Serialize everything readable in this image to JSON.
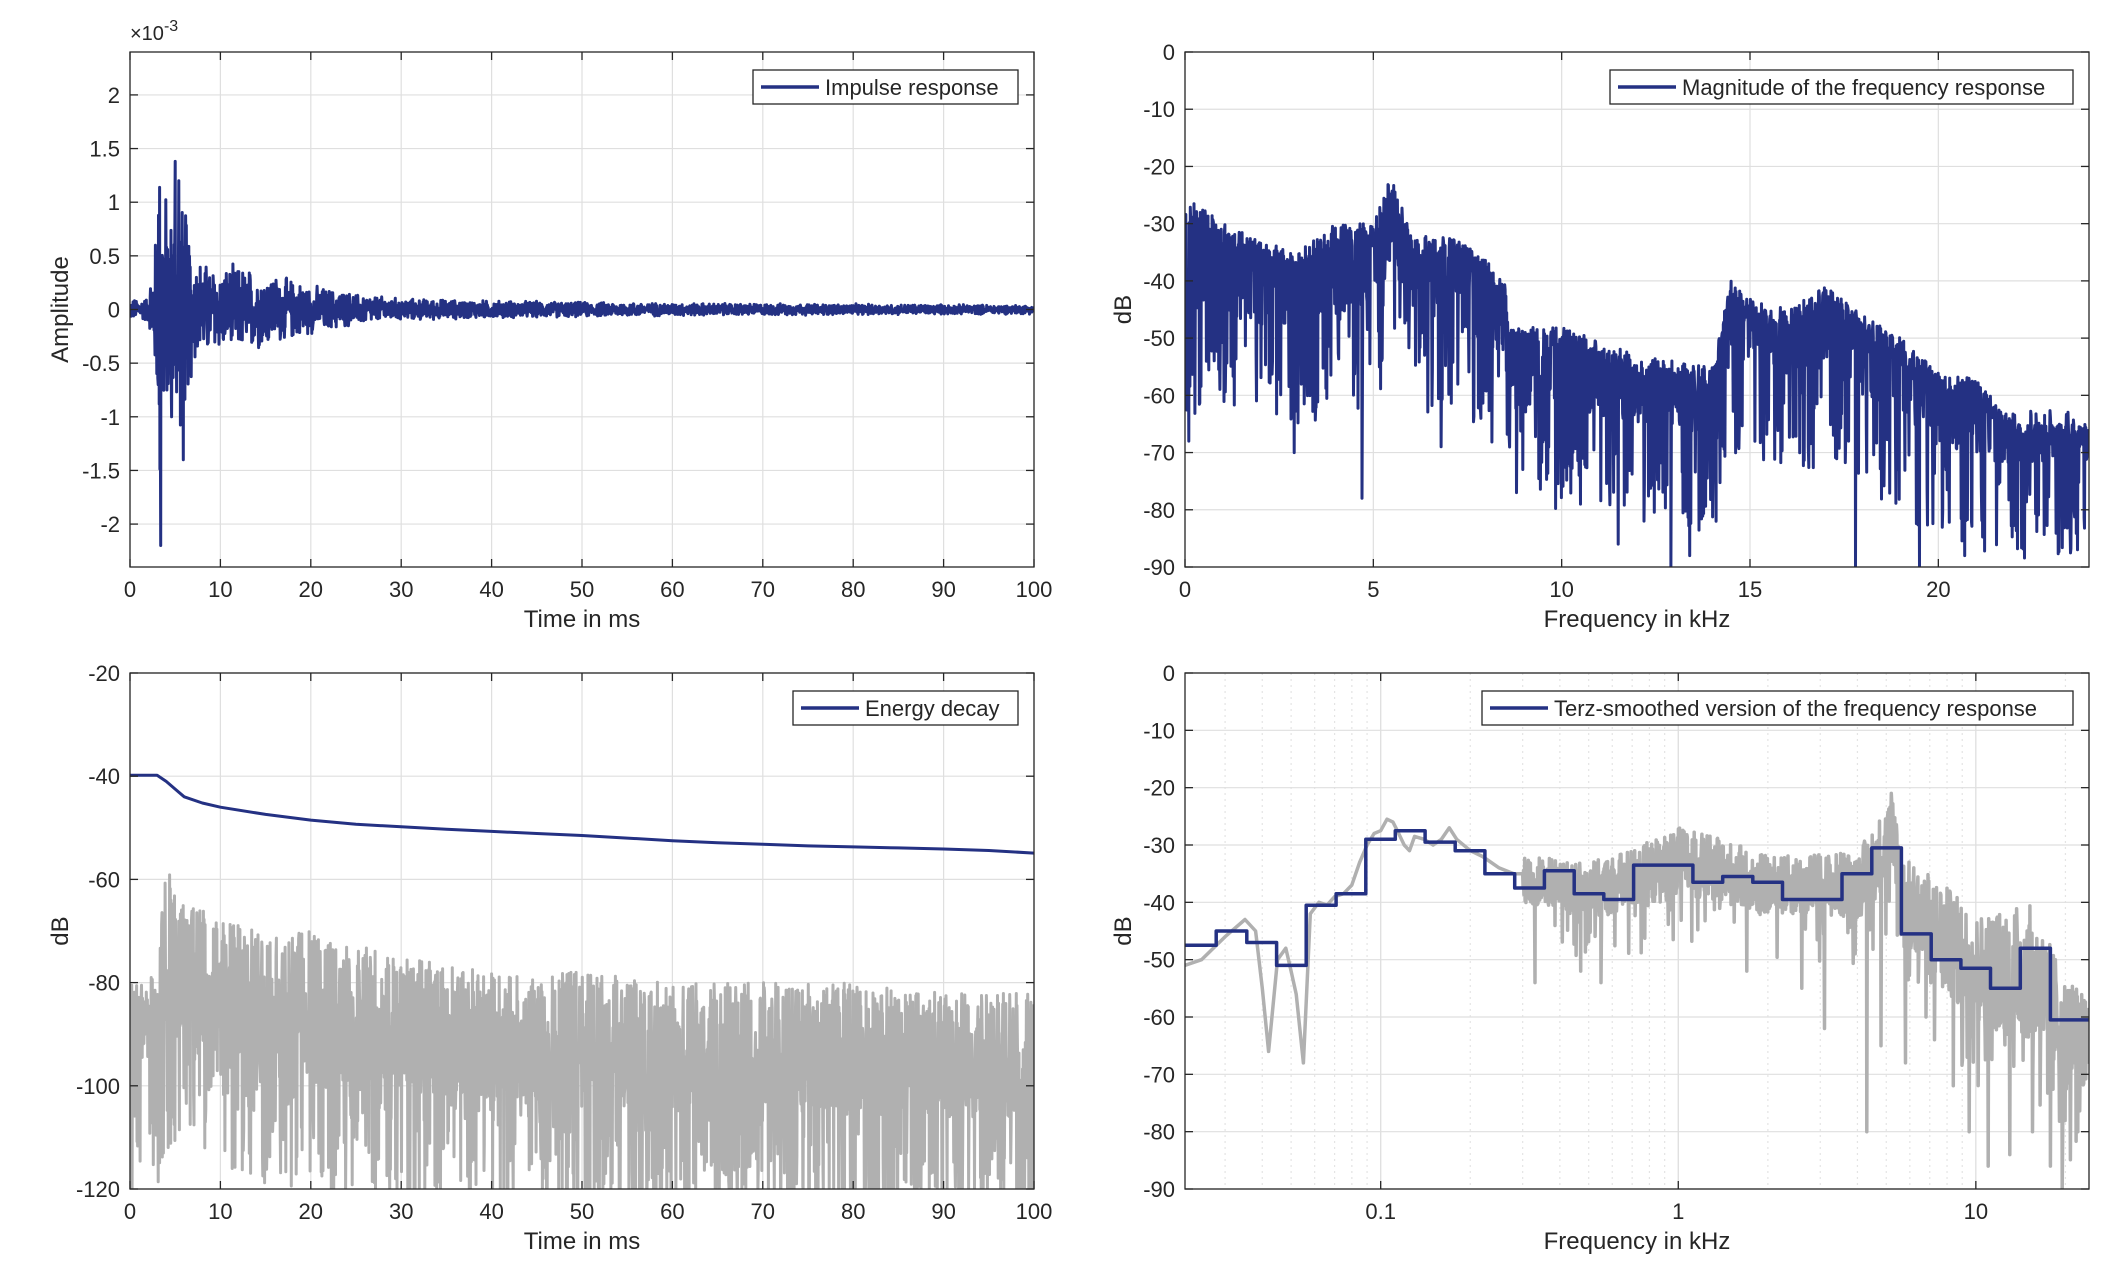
{
  "colors": {
    "main": "#243183",
    "gray": "#b0b0b0",
    "axis": "#262626",
    "grid": "#dfdfdf"
  },
  "chart_data": [
    {
      "type": "line",
      "xlabel": "Time in ms",
      "ylabel": "Amplitude",
      "xlim": [
        0,
        100
      ],
      "ylim": [
        -2.4,
        2.4
      ],
      "exponent_label": "×10",
      "exponent_power": "-3",
      "xticks": [
        0,
        10,
        20,
        30,
        40,
        50,
        60,
        70,
        80,
        90,
        100
      ],
      "xtick_labels": [
        "0",
        "10",
        "20",
        "30",
        "40",
        "50",
        "60",
        "70",
        "80",
        "90",
        "100"
      ],
      "yticks": [
        2,
        1.5,
        1,
        0.5,
        0,
        -0.5,
        -1,
        -1.5,
        -2
      ],
      "ytick_labels": [
        "2",
        "1.5",
        "1",
        "0.5",
        "0",
        "-0.5",
        "-1",
        "-1.5",
        "-2"
      ],
      "grid": true,
      "legend_position": "top-right",
      "series": [
        {
          "name": "Impulse response",
          "color": "#243183",
          "envelope": {
            "x": [
              0,
              2,
              3,
              3.2,
              3.5,
              4,
              4.5,
              5,
              5.5,
              6,
              7,
              8,
              10,
              12,
              15,
              18,
              20,
              25,
              30,
              40,
              50,
              60,
              70,
              80,
              90,
              100
            ],
            "y": [
              0.1,
              0.12,
              0.9,
              2.2,
              1.5,
              1.2,
              1.0,
              1.38,
              1.2,
              1.1,
              0.6,
              0.5,
              0.42,
              0.45,
              0.38,
              0.3,
              0.25,
              0.16,
              0.11,
              0.09,
              0.075,
              0.065,
              0.06,
              0.055,
              0.05,
              0.045
            ]
          },
          "peaks": [
            {
              "x": 3.4,
              "y": -2.2
            },
            {
              "x": 5.0,
              "y": 1.38
            },
            {
              "x": 5.4,
              "y": 1.2
            },
            {
              "x": 5.9,
              "y": -1.4
            },
            {
              "x": 4.6,
              "y": -1.0
            }
          ]
        }
      ]
    },
    {
      "type": "line",
      "xlabel": "Frequency in kHz",
      "ylabel": "dB",
      "xlim": [
        0,
        24
      ],
      "ylim": [
        -90,
        0
      ],
      "xticks": [
        0,
        5,
        10,
        15,
        20
      ],
      "xtick_labels": [
        "0",
        "5",
        "10",
        "15",
        "20"
      ],
      "yticks": [
        0,
        -10,
        -20,
        -30,
        -40,
        -50,
        -60,
        -70,
        -80,
        -90
      ],
      "ytick_labels": [
        "0",
        "-10",
        "-20",
        "-30",
        "-40",
        "-50",
        "-60",
        "-70",
        "-80",
        "-90"
      ],
      "grid": true,
      "legend_position": "top-right",
      "series": [
        {
          "name": "Magnitude of the frequency response",
          "color": "#243183",
          "upper_envelope": {
            "x": [
              0,
              0.2,
              1,
              2,
              3,
              4,
              5,
              5.5,
              6,
              7,
              8,
              8.5,
              8.6,
              10,
              12,
              14,
              14.5,
              15,
              16,
              17,
              18,
              19,
              20,
              21,
              22,
              23,
              24
            ],
            "y": [
              -28,
              -26,
              -30,
              -33,
              -35,
              -30,
              -30,
              -21,
              -32,
              -32,
              -36,
              -40,
              -48,
              -48,
              -53,
              -55,
              -40,
              -43,
              -45,
              -41,
              -46,
              -50,
              -56,
              -57,
              -65,
              -65,
              -65
            ]
          },
          "base_envelope": {
            "x": [
              0,
              1,
              2,
              3,
              4,
              5,
              5.5,
              6,
              7,
              8,
              8.5,
              8.6,
              10,
              12,
              14,
              14.5,
              15,
              16,
              17,
              18,
              19,
              20,
              21,
              22,
              23,
              24
            ],
            "y": [
              -42,
              -42,
              -43,
              -43,
              -42,
              -40,
              -32,
              -40,
              -43,
              -46,
              -48,
              -58,
              -58,
              -60,
              -62,
              -48,
              -50,
              -52,
              -50,
              -55,
              -58,
              -64,
              -65,
              -68,
              -67,
              -67
            ]
          },
          "dips": [
            {
              "x": 0.1,
              "y": -68
            },
            {
              "x": 2.9,
              "y": -70
            },
            {
              "x": 4.7,
              "y": -78
            },
            {
              "x": 6.8,
              "y": -69
            },
            {
              "x": 8.8,
              "y": -77
            },
            {
              "x": 10.5,
              "y": -79
            },
            {
              "x": 11.5,
              "y": -86
            },
            {
              "x": 12.9,
              "y": -90
            },
            {
              "x": 13.4,
              "y": -88
            },
            {
              "x": 14.1,
              "y": -82
            },
            {
              "x": 17.8,
              "y": -90
            },
            {
              "x": 19.5,
              "y": -90
            },
            {
              "x": 20.7,
              "y": -88
            }
          ]
        }
      ]
    },
    {
      "type": "line",
      "xlabel": "Time in ms",
      "ylabel": "dB",
      "xlim": [
        0,
        100
      ],
      "ylim": [
        -120,
        -20
      ],
      "xticks": [
        0,
        10,
        20,
        30,
        40,
        50,
        60,
        70,
        80,
        90,
        100
      ],
      "xtick_labels": [
        "0",
        "10",
        "20",
        "30",
        "40",
        "50",
        "60",
        "70",
        "80",
        "90",
        "100"
      ],
      "yticks": [
        -20,
        -40,
        -60,
        -80,
        -100,
        -120
      ],
      "ytick_labels": [
        "-20",
        "-40",
        "-60",
        "-80",
        "-100",
        "-120"
      ],
      "grid": true,
      "legend_position": "top-right",
      "series": [
        {
          "name": "Energy decay",
          "color": "#243183",
          "x": [
            0,
            3,
            4,
            5,
            6,
            8,
            10,
            15,
            20,
            25,
            30,
            35,
            40,
            45,
            50,
            55,
            60,
            65,
            70,
            75,
            80,
            85,
            90,
            95,
            100
          ],
          "y": [
            -39.8,
            -39.8,
            -41,
            -42.5,
            -44,
            -45.2,
            -46,
            -47.4,
            -48.5,
            -49.3,
            -49.8,
            -50.3,
            -50.7,
            -51.1,
            -51.5,
            -52,
            -52.5,
            -52.9,
            -53.2,
            -53.5,
            -53.7,
            -53.9,
            -54.1,
            -54.4,
            -54.9
          ]
        },
        {
          "name": "",
          "color": "#b0b0b0",
          "upper_envelope": {
            "x": [
              0,
              3,
              4,
              5,
              8,
              10,
              15,
              20,
              30,
              40,
              50,
              60,
              70,
              80,
              90,
              100
            ],
            "y": [
              -80,
              -78,
              -54,
              -62,
              -66,
              -68,
              -70,
              -70,
              -75,
              -78,
              -78,
              -80,
              -80,
              -80,
              -82,
              -82
            ]
          },
          "mean_level": {
            "x": [
              0,
              3,
              5,
              10,
              20,
              30,
              40,
              50,
              60,
              70,
              80,
              90,
              100
            ],
            "y": [
              -92,
              -90,
              -82,
              -85,
              -89,
              -92,
              -94,
              -95,
              -96,
              -96,
              -97,
              -97,
              -98
            ]
          }
        }
      ]
    },
    {
      "type": "line",
      "xlabel": "Frequency in kHz",
      "ylabel": "dB",
      "xscale": "log",
      "xlim": [
        0.022,
        24
      ],
      "ylim": [
        -90,
        0
      ],
      "xticks": [
        0.1,
        1,
        10
      ],
      "xtick_labels": [
        "0.1",
        "1",
        "10"
      ],
      "yticks": [
        0,
        -10,
        -20,
        -30,
        -40,
        -50,
        -60,
        -70,
        -80,
        -90
      ],
      "ytick_labels": [
        "0",
        "-10",
        "-20",
        "-30",
        "-40",
        "-50",
        "-60",
        "-70",
        "-80",
        "-90"
      ],
      "grid": true,
      "minor_grid": true,
      "legend_position": "top-right",
      "series": [
        {
          "name": "Terz-smoothed version of the frequency response",
          "color": "#243183",
          "step": true,
          "bands": [
            [
              0.022,
              0.028,
              -47.5
            ],
            [
              0.028,
              0.0355,
              -45
            ],
            [
              0.0355,
              0.0447,
              -47
            ],
            [
              0.0447,
              0.0562,
              -51
            ],
            [
              0.0562,
              0.0708,
              -40.5
            ],
            [
              0.0708,
              0.0891,
              -38.5
            ],
            [
              0.0891,
              0.112,
              -29
            ],
            [
              0.112,
              0.141,
              -27.5
            ],
            [
              0.141,
              0.178,
              -29.5
            ],
            [
              0.178,
              0.224,
              -31
            ],
            [
              0.224,
              0.282,
              -35
            ],
            [
              0.282,
              0.355,
              -37.5
            ],
            [
              0.355,
              0.447,
              -34.5
            ],
            [
              0.447,
              0.562,
              -38.5
            ],
            [
              0.562,
              0.708,
              -39.5
            ],
            [
              0.708,
              0.891,
              -33.5
            ],
            [
              0.891,
              1.12,
              -33.5
            ],
            [
              1.12,
              1.41,
              -36.5
            ],
            [
              1.41,
              1.78,
              -35.5
            ],
            [
              1.78,
              2.24,
              -36.5
            ],
            [
              2.24,
              2.82,
              -39.5
            ],
            [
              2.82,
              3.55,
              -39.5
            ],
            [
              3.55,
              4.47,
              -35
            ],
            [
              4.47,
              5.62,
              -30.5
            ],
            [
              5.62,
              7.08,
              -45.5
            ],
            [
              7.08,
              8.91,
              -50
            ],
            [
              8.91,
              11.2,
              -51.5
            ],
            [
              11.2,
              14.1,
              -55
            ],
            [
              14.1,
              17.8,
              -48
            ],
            [
              17.8,
              24,
              -60.5
            ]
          ]
        },
        {
          "name": "",
          "color": "#b0b0b0",
          "x": [
            0.022,
            0.025,
            0.03,
            0.035,
            0.038,
            0.04,
            0.042,
            0.045,
            0.048,
            0.05,
            0.052,
            0.055,
            0.058,
            0.062,
            0.066,
            0.07,
            0.075,
            0.08,
            0.085,
            0.09,
            0.095,
            0.1,
            0.105,
            0.11,
            0.115,
            0.12,
            0.125,
            0.13,
            0.14,
            0.15,
            0.16,
            0.17,
            0.18,
            0.2,
            0.22,
            0.25,
            0.28,
            0.3
          ],
          "y": [
            -51,
            -50,
            -46,
            -43,
            -45,
            -55,
            -66,
            -50,
            -48,
            -52,
            -56,
            -68,
            -42,
            -40,
            -40.5,
            -39,
            -38.5,
            -37,
            -33,
            -30,
            -28,
            -27.5,
            -25.5,
            -26,
            -28,
            -30,
            -31,
            -28.5,
            -29,
            -30,
            -29,
            -27,
            -29,
            -31,
            -32,
            -34,
            -35,
            -35
          ],
          "noise": {
            "x": [
              0.3,
              0.5,
              1,
              2,
              4,
              5,
              5.3,
              5.6,
              7,
              10,
              15,
              20,
              24
            ],
            "center": [
              -36,
              -38,
              -33,
              -37,
              -37,
              -30,
              -26,
              -40,
              -44,
              -52,
              -52,
              -63,
              -65
            ],
            "amp": [
              4,
              5,
              6,
              5,
              6,
              7,
              6,
              8,
              9,
              10,
              12,
              10,
              8
            ]
          },
          "dips": [
            {
              "x": 0.33,
              "y": -54
            },
            {
              "x": 0.47,
              "y": -52
            },
            {
              "x": 0.55,
              "y": -54
            },
            {
              "x": 1.7,
              "y": -52
            },
            {
              "x": 2.6,
              "y": -55
            },
            {
              "x": 3.1,
              "y": -62
            },
            {
              "x": 4.3,
              "y": -80
            },
            {
              "x": 4.8,
              "y": -65
            },
            {
              "x": 5.8,
              "y": -68
            },
            {
              "x": 6.8,
              "y": -60
            },
            {
              "x": 8.4,
              "y": -72
            },
            {
              "x": 9.5,
              "y": -80
            },
            {
              "x": 11,
              "y": -86
            },
            {
              "x": 13,
              "y": -84
            },
            {
              "x": 15.5,
              "y": -80
            },
            {
              "x": 17.8,
              "y": -86
            },
            {
              "x": 19.5,
              "y": -90
            },
            {
              "x": 22,
              "y": -80
            }
          ],
          "peaks": [
            {
              "x": 5.2,
              "y": -21
            }
          ]
        }
      ]
    }
  ]
}
